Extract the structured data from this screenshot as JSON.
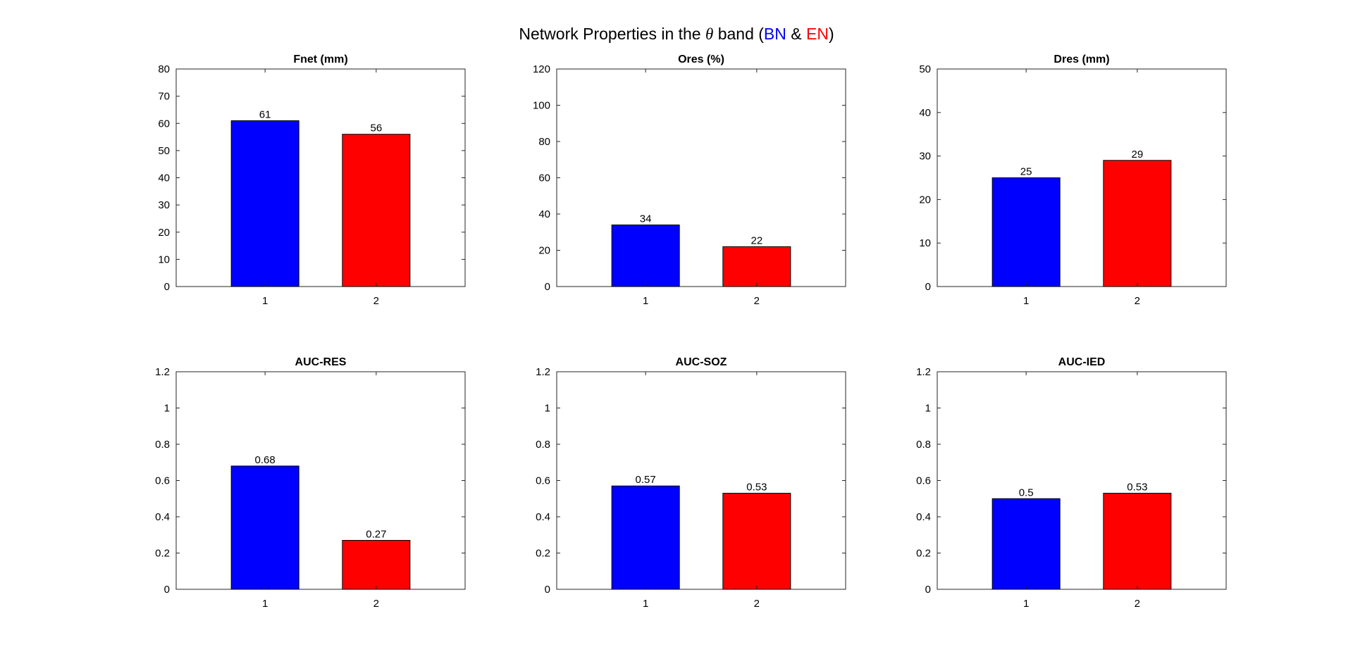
{
  "figure": {
    "title_prefix": "Network Properties in the ",
    "title_symbol": "θ",
    "title_middle": " band (",
    "title_bn": "BN",
    "title_amp": " & ",
    "title_en": "EN",
    "title_suffix": ")",
    "bn_color": "#0000ff",
    "en_color": "#ff0000"
  },
  "chart_data": [
    {
      "type": "bar",
      "title": "Fnet (mm)",
      "categories": [
        "1",
        "2"
      ],
      "values": [
        61,
        56
      ],
      "labels": [
        "61",
        "56"
      ],
      "colors": [
        "#0000ff",
        "#ff0000"
      ],
      "ylim": [
        0,
        80
      ],
      "yticks": [
        0,
        10,
        20,
        30,
        40,
        50,
        60,
        70,
        80
      ],
      "grid": false
    },
    {
      "type": "bar",
      "title": "Ores (%)",
      "categories": [
        "1",
        "2"
      ],
      "values": [
        34,
        22
      ],
      "labels": [
        "34",
        "22"
      ],
      "colors": [
        "#0000ff",
        "#ff0000"
      ],
      "ylim": [
        0,
        120
      ],
      "yticks": [
        0,
        20,
        40,
        60,
        80,
        100,
        120
      ],
      "grid": false
    },
    {
      "type": "bar",
      "title": "Dres (mm)",
      "categories": [
        "1",
        "2"
      ],
      "values": [
        25,
        29
      ],
      "labels": [
        "25",
        "29"
      ],
      "colors": [
        "#0000ff",
        "#ff0000"
      ],
      "ylim": [
        0,
        50
      ],
      "yticks": [
        0,
        10,
        20,
        30,
        40,
        50
      ],
      "grid": false
    },
    {
      "type": "bar",
      "title": "AUC-RES",
      "categories": [
        "1",
        "2"
      ],
      "values": [
        0.68,
        0.27
      ],
      "labels": [
        "0.68",
        "0.27"
      ],
      "colors": [
        "#0000ff",
        "#ff0000"
      ],
      "ylim": [
        0,
        1.2
      ],
      "yticks": [
        0,
        0.2,
        0.4,
        0.6,
        0.8,
        1,
        1.2
      ],
      "grid": false
    },
    {
      "type": "bar",
      "title": "AUC-SOZ",
      "categories": [
        "1",
        "2"
      ],
      "values": [
        0.57,
        0.53
      ],
      "labels": [
        "0.57",
        "0.53"
      ],
      "colors": [
        "#0000ff",
        "#ff0000"
      ],
      "ylim": [
        0,
        1.2
      ],
      "yticks": [
        0,
        0.2,
        0.4,
        0.6,
        0.8,
        1,
        1.2
      ],
      "grid": false
    },
    {
      "type": "bar",
      "title": "AUC-IED",
      "categories": [
        "1",
        "2"
      ],
      "values": [
        0.5,
        0.53
      ],
      "labels": [
        "0.5",
        "0.53"
      ],
      "colors": [
        "#0000ff",
        "#ff0000"
      ],
      "ylim": [
        0,
        1.2
      ],
      "yticks": [
        0,
        0.2,
        0.4,
        0.6,
        0.8,
        1,
        1.2
      ],
      "grid": false
    }
  ]
}
